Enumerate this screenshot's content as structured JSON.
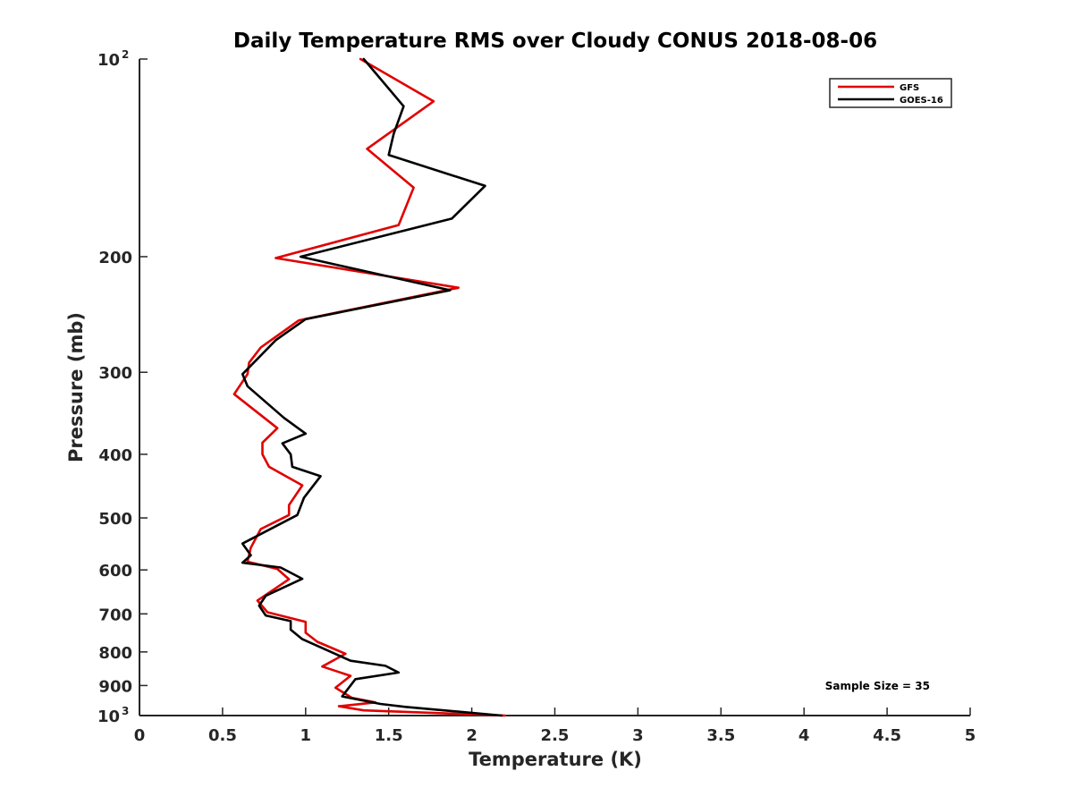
{
  "chart_data": {
    "type": "line",
    "title": "Daily Temperature RMS over Cloudy CONUS 2018-08-06",
    "xlabel": "Temperature (K)",
    "ylabel": "Pressure (mb)",
    "xlim": [
      0,
      5
    ],
    "ylim": [
      100,
      1000
    ],
    "y_scale": "log",
    "y_reversed": true,
    "grid": false,
    "legend_position": "top-right",
    "x_ticks": [
      {
        "value": 0,
        "label": "0"
      },
      {
        "value": 0.5,
        "label": "0.5"
      },
      {
        "value": 1,
        "label": "1"
      },
      {
        "value": 1.5,
        "label": "1.5"
      },
      {
        "value": 2,
        "label": "2"
      },
      {
        "value": 2.5,
        "label": "2.5"
      },
      {
        "value": 3,
        "label": "3"
      },
      {
        "value": 3.5,
        "label": "3.5"
      },
      {
        "value": 4,
        "label": "4"
      },
      {
        "value": 4.5,
        "label": "4.5"
      },
      {
        "value": 5,
        "label": "5"
      }
    ],
    "y_ticks": [
      {
        "value": 100,
        "label": "10",
        "sup": "2"
      },
      {
        "value": 200,
        "label": "200"
      },
      {
        "value": 300,
        "label": "300"
      },
      {
        "value": 400,
        "label": "400"
      },
      {
        "value": 500,
        "label": "500"
      },
      {
        "value": 600,
        "label": "600"
      },
      {
        "value": 700,
        "label": "700"
      },
      {
        "value": 800,
        "label": "800"
      },
      {
        "value": 900,
        "label": "900"
      },
      {
        "value": 1000,
        "label": "10",
        "sup": "3"
      }
    ],
    "series": [
      {
        "name": "GFS",
        "color": "#e00000",
        "points": [
          [
            1.33,
            100
          ],
          [
            1.77,
            116
          ],
          [
            1.37,
            137
          ],
          [
            1.65,
            157
          ],
          [
            1.56,
            179
          ],
          [
            0.82,
            201
          ],
          [
            1.92,
            223
          ],
          [
            0.96,
            250
          ],
          [
            0.73,
            275
          ],
          [
            0.66,
            290
          ],
          [
            0.65,
            302
          ],
          [
            0.57,
            324
          ],
          [
            0.83,
            365
          ],
          [
            0.74,
            384
          ],
          [
            0.74,
            400
          ],
          [
            0.78,
            418
          ],
          [
            0.98,
            446
          ],
          [
            0.9,
            478
          ],
          [
            0.9,
            495
          ],
          [
            0.73,
            520
          ],
          [
            0.67,
            555
          ],
          [
            0.65,
            583
          ],
          [
            0.83,
            598
          ],
          [
            0.9,
            620
          ],
          [
            0.71,
            668
          ],
          [
            0.77,
            696
          ],
          [
            1.0,
            720
          ],
          [
            1.0,
            748
          ],
          [
            1.07,
            772
          ],
          [
            1.24,
            805
          ],
          [
            1.1,
            842
          ],
          [
            1.27,
            870
          ],
          [
            1.18,
            907
          ],
          [
            1.28,
            940
          ],
          [
            1.42,
            955
          ],
          [
            1.2,
            968
          ],
          [
            1.35,
            982
          ],
          [
            2.2,
            1000
          ]
        ]
      },
      {
        "name": "GOES-16",
        "color": "#000000",
        "points": [
          [
            1.35,
            100
          ],
          [
            1.59,
            118
          ],
          [
            1.53,
            130
          ],
          [
            1.5,
            140
          ],
          [
            2.08,
            156
          ],
          [
            1.88,
            175
          ],
          [
            0.97,
            200
          ],
          [
            1.87,
            225
          ],
          [
            1.0,
            249
          ],
          [
            0.82,
            268
          ],
          [
            0.62,
            302
          ],
          [
            0.65,
            315
          ],
          [
            0.87,
            352
          ],
          [
            1.0,
            372
          ],
          [
            0.86,
            385
          ],
          [
            0.91,
            400
          ],
          [
            0.92,
            418
          ],
          [
            1.09,
            432
          ],
          [
            0.99,
            466
          ],
          [
            0.95,
            495
          ],
          [
            0.62,
            547
          ],
          [
            0.67,
            570
          ],
          [
            0.62,
            585
          ],
          [
            0.85,
            595
          ],
          [
            0.98,
            619
          ],
          [
            0.76,
            657
          ],
          [
            0.72,
            680
          ],
          [
            0.76,
            704
          ],
          [
            0.91,
            718
          ],
          [
            0.91,
            740
          ],
          [
            0.98,
            765
          ],
          [
            1.27,
            825
          ],
          [
            1.48,
            840
          ],
          [
            1.56,
            860
          ],
          [
            1.3,
            880
          ],
          [
            1.27,
            900
          ],
          [
            1.22,
            935
          ],
          [
            1.45,
            960
          ],
          [
            1.6,
            970
          ],
          [
            2.18,
            1000
          ]
        ]
      }
    ],
    "annotation": "Sample Size = 35"
  }
}
